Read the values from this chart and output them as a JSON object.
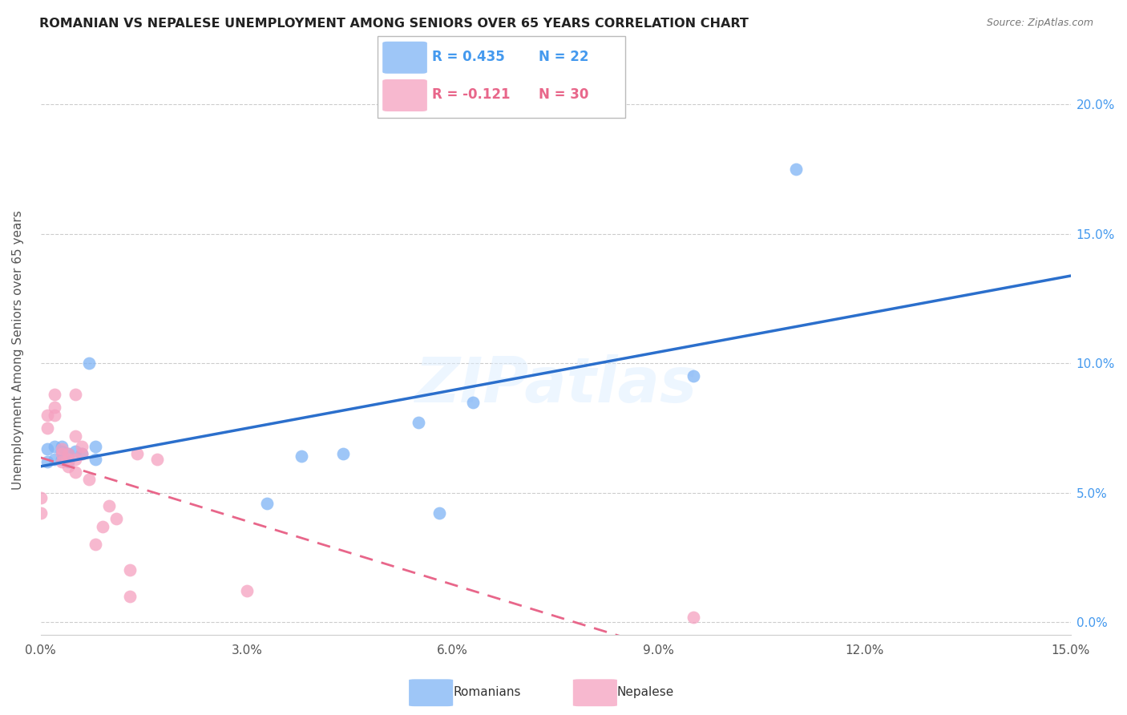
{
  "title": "ROMANIAN VS NEPALESE UNEMPLOYMENT AMONG SENIORS OVER 65 YEARS CORRELATION CHART",
  "source": "Source: ZipAtlas.com",
  "ylabel": "Unemployment Among Seniors over 65 years",
  "xlim": [
    0.0,
    0.15
  ],
  "ylim": [
    -0.005,
    0.215
  ],
  "xticks": [
    0.0,
    0.03,
    0.06,
    0.09,
    0.12,
    0.15
  ],
  "yticks": [
    0.0,
    0.05,
    0.1,
    0.15,
    0.2
  ],
  "romanian_R": 0.435,
  "romanian_N": 22,
  "nepalese_R": -0.121,
  "nepalese_N": 30,
  "romanian_color": "#7EB3F5",
  "nepalese_color": "#F5A0C0",
  "romanian_line_color": "#2B6FCC",
  "nepalese_line_color": "#E8668A",
  "watermark": "ZIPatlas",
  "background_color": "#FFFFFF",
  "romanian_x": [
    0.001,
    0.001,
    0.002,
    0.002,
    0.003,
    0.003,
    0.003,
    0.004,
    0.004,
    0.005,
    0.006,
    0.007,
    0.008,
    0.008,
    0.033,
    0.038,
    0.044,
    0.055,
    0.058,
    0.063,
    0.095,
    0.11
  ],
  "romanian_y": [
    0.062,
    0.067,
    0.063,
    0.068,
    0.063,
    0.066,
    0.068,
    0.062,
    0.065,
    0.066,
    0.065,
    0.1,
    0.063,
    0.068,
    0.046,
    0.064,
    0.065,
    0.077,
    0.042,
    0.085,
    0.095,
    0.175
  ],
  "nepalese_x": [
    0.0,
    0.0,
    0.001,
    0.001,
    0.002,
    0.002,
    0.002,
    0.003,
    0.003,
    0.003,
    0.004,
    0.004,
    0.004,
    0.005,
    0.005,
    0.005,
    0.005,
    0.006,
    0.006,
    0.007,
    0.008,
    0.009,
    0.01,
    0.011,
    0.013,
    0.013,
    0.014,
    0.017,
    0.03,
    0.095
  ],
  "nepalese_y": [
    0.042,
    0.048,
    0.075,
    0.08,
    0.08,
    0.083,
    0.088,
    0.062,
    0.065,
    0.067,
    0.06,
    0.063,
    0.065,
    0.058,
    0.063,
    0.072,
    0.088,
    0.065,
    0.068,
    0.055,
    0.03,
    0.037,
    0.045,
    0.04,
    0.01,
    0.02,
    0.065,
    0.063,
    0.012,
    0.002
  ]
}
